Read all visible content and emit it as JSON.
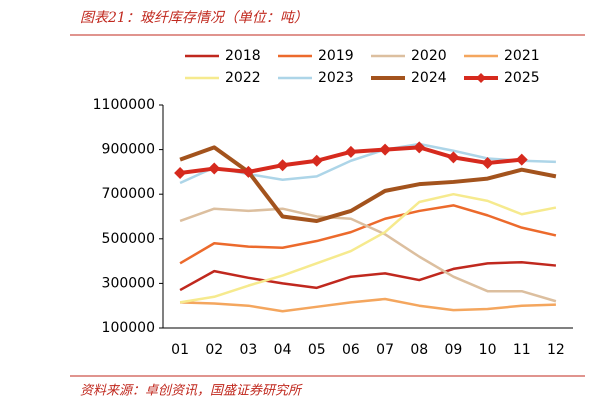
{
  "chart_data": {
    "type": "line",
    "title": "图表21：玻纤库存情况（单位：吨）",
    "source": "资料来源：卓创资讯，国盛证券研究所",
    "categories": [
      "01",
      "02",
      "03",
      "04",
      "05",
      "06",
      "07",
      "08",
      "09",
      "10",
      "11",
      "12"
    ],
    "ylim": [
      100000,
      1100000
    ],
    "yticks": [
      100000,
      300000,
      500000,
      700000,
      900000,
      1100000
    ],
    "legend": "top",
    "series": [
      {
        "name": "2018",
        "color": "#c0281e",
        "line_width": 2.5,
        "values": [
          270000,
          355000,
          325000,
          300000,
          280000,
          330000,
          345000,
          315000,
          365000,
          390000,
          395000,
          380000
        ]
      },
      {
        "name": "2019",
        "color": "#ec6a2c",
        "line_width": 2.5,
        "values": [
          390000,
          480000,
          465000,
          460000,
          490000,
          530000,
          590000,
          625000,
          650000,
          605000,
          550000,
          515000
        ]
      },
      {
        "name": "2020",
        "color": "#dcbf9f",
        "line_width": 2.5,
        "values": [
          580000,
          635000,
          625000,
          635000,
          600000,
          590000,
          520000,
          420000,
          330000,
          265000,
          265000,
          220000
        ]
      },
      {
        "name": "2021",
        "color": "#f4a65e",
        "line_width": 2.5,
        "values": [
          215000,
          210000,
          200000,
          175000,
          195000,
          215000,
          230000,
          200000,
          180000,
          185000,
          200000,
          205000
        ]
      },
      {
        "name": "2022",
        "color": "#f6ea8e",
        "line_width": 2.5,
        "values": [
          215000,
          240000,
          290000,
          335000,
          390000,
          445000,
          530000,
          665000,
          700000,
          670000,
          610000,
          640000
        ]
      },
      {
        "name": "2023",
        "color": "#add5e8",
        "line_width": 2.5,
        "values": [
          750000,
          820000,
          790000,
          765000,
          780000,
          850000,
          900000,
          925000,
          895000,
          860000,
          850000,
          845000
        ]
      },
      {
        "name": "2024",
        "color": "#a3531d",
        "line_width": 4,
        "values": [
          855000,
          910000,
          800000,
          600000,
          580000,
          625000,
          715000,
          745000,
          755000,
          770000,
          810000,
          780000
        ]
      },
      {
        "name": "2025",
        "color": "#d62a1e",
        "line_width": 4,
        "marker": "diamond",
        "values": [
          795000,
          815000,
          800000,
          830000,
          850000,
          890000,
          900000,
          910000,
          865000,
          840000,
          855000,
          null
        ]
      }
    ]
  }
}
